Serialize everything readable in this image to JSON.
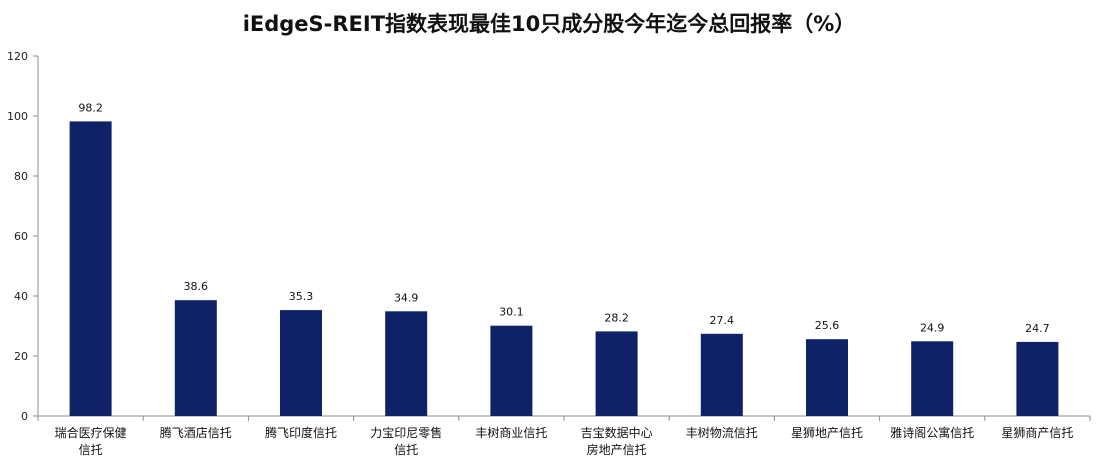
{
  "chart_data": {
    "type": "bar",
    "title": "iEdgeS-REIT指数表现最佳10只成分股今年迄今总回报率（%）",
    "categories": [
      [
        "瑞合医疗保健",
        "信托"
      ],
      [
        "腾飞酒店信托"
      ],
      [
        "腾飞印度信托"
      ],
      [
        "力宝印尼零售",
        "信托"
      ],
      [
        "丰树商业信托"
      ],
      [
        "吉宝数据中心",
        "房地产信托"
      ],
      [
        "丰树物流信托"
      ],
      [
        "星狮地产信托"
      ],
      [
        "雅诗阁公寓信托"
      ],
      [
        "星狮商产信托"
      ]
    ],
    "values": [
      98.2,
      38.6,
      35.3,
      34.9,
      30.1,
      28.2,
      27.4,
      25.6,
      24.9,
      24.7
    ],
    "value_labels": [
      "98.2",
      "38.6",
      "35.3",
      "34.9",
      "30.1",
      "28.2",
      "27.4",
      "25.6",
      "24.9",
      "24.7"
    ],
    "ylim": [
      0,
      120
    ],
    "yticks": [
      "0",
      "20",
      "40",
      "60",
      "80",
      "100",
      "120"
    ],
    "xlabel": "",
    "ylabel": "",
    "grid": false,
    "legend": "none",
    "bar_color": "#0f2167"
  }
}
